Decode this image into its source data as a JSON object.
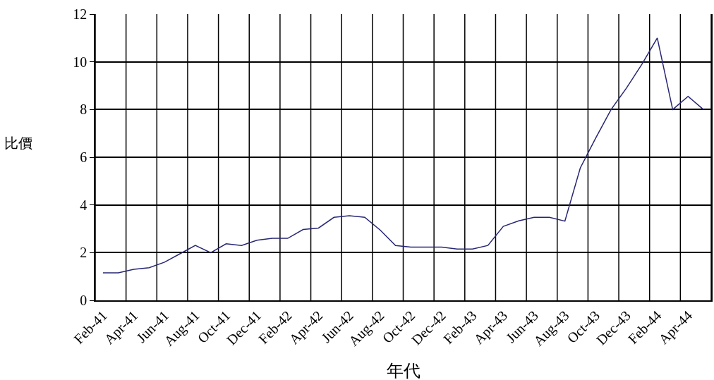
{
  "chart_data": {
    "type": "line",
    "xlabel": "年代",
    "ylabel": "比價",
    "categories": [
      "Feb-41",
      null,
      "Apr-41",
      null,
      "Jun-41",
      null,
      "Aug-41",
      null,
      "Oct-41",
      null,
      "Dec-41",
      null,
      "Feb-42",
      null,
      "Apr-42",
      null,
      "Jun-42",
      null,
      "Aug-42",
      null,
      "Oct-42",
      null,
      "Dec-42",
      null,
      "Feb-43",
      null,
      "Apr-43",
      null,
      "Jun-43",
      null,
      "Aug-43",
      null,
      "Oct-43",
      null,
      "Dec-43",
      null,
      "Feb-44",
      null,
      "Apr-44",
      null
    ],
    "series": [
      {
        "color": "#262673",
        "values": [
          1.15,
          1.15,
          1.3,
          1.37,
          1.6,
          1.95,
          2.3,
          2.0,
          2.37,
          2.3,
          2.52,
          2.6,
          2.6,
          2.97,
          3.03,
          3.48,
          3.55,
          3.48,
          2.95,
          2.3,
          2.23,
          2.23,
          2.23,
          2.15,
          2.15,
          2.3,
          3.1,
          3.33,
          3.48,
          3.48,
          3.32,
          5.55,
          6.8,
          8.0,
          8.9,
          9.9,
          11.0,
          8.0,
          8.55,
          8.0
        ]
      }
    ],
    "ylim": [
      0,
      12
    ],
    "yticks": [
      0,
      2,
      4,
      6,
      8,
      10,
      12
    ],
    "grid": true,
    "legend": false,
    "marker": "none",
    "line_style": "solid"
  }
}
